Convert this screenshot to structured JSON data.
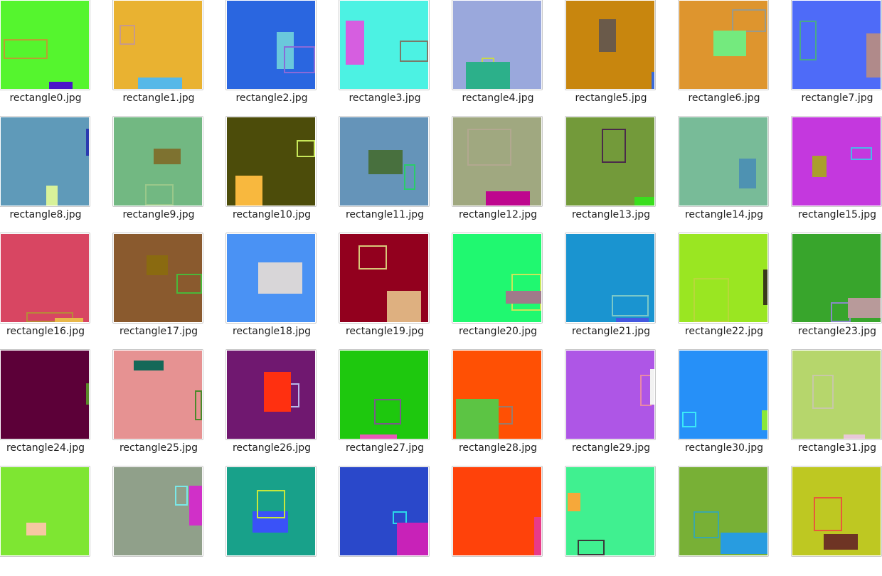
{
  "files": [
    {
      "name": "rectangle0.jpg",
      "bg": "#55f52e",
      "shapes": [
        {
          "k": "o",
          "c": "#b9a032"
        },
        {
          "k": "f",
          "c": "#4a16c8"
        }
      ]
    },
    {
      "name": "rectangle1.jpg",
      "bg": "#e9b231",
      "shapes": [
        {
          "k": "o",
          "c": "#c79a8a"
        },
        {
          "k": "f",
          "c": "#56b8e8"
        }
      ]
    },
    {
      "name": "rectangle2.jpg",
      "bg": "#2a66e0",
      "shapes": [
        {
          "k": "f",
          "c": "#6ac8dc"
        },
        {
          "k": "o",
          "c": "#8a6ad8"
        }
      ]
    },
    {
      "name": "rectangle3.jpg",
      "bg": "#4cf2e3",
      "shapes": [
        {
          "k": "f",
          "c": "#d65ee0"
        },
        {
          "k": "o",
          "c": "#7a7a6a"
        }
      ]
    },
    {
      "name": "rectangle4.jpg",
      "bg": "#9aa8dc",
      "shapes": [
        {
          "k": "o",
          "c": "#c8d84a"
        },
        {
          "k": "f",
          "c": "#2cb08a"
        }
      ]
    },
    {
      "name": "rectangle5.jpg",
      "bg": "#c8860e",
      "shapes": [
        {
          "k": "f",
          "c": "#6a5a4a"
        },
        {
          "k": "f",
          "c": "#3a6ad8"
        }
      ]
    },
    {
      "name": "rectangle6.jpg",
      "bg": "#de952e",
      "shapes": [
        {
          "k": "o",
          "c": "#9a9a8a"
        },
        {
          "k": "f",
          "c": "#74ea7e"
        }
      ]
    },
    {
      "name": "rectangle7.jpg",
      "bg": "#4e6bf8",
      "shapes": [
        {
          "k": "o",
          "c": "#4aa88a"
        },
        {
          "k": "f",
          "c": "#b08a8a"
        }
      ]
    },
    {
      "name": "rectangle8.jpg",
      "bg": "#5f9ab9",
      "shapes": [
        {
          "k": "o",
          "c": "#2a3ab0"
        },
        {
          "k": "f",
          "c": "#d8f29a"
        }
      ]
    },
    {
      "name": "rectangle9.jpg",
      "bg": "#72b882",
      "shapes": [
        {
          "k": "f",
          "c": "#7e7230"
        },
        {
          "k": "o",
          "c": "#9ac88a"
        }
      ]
    },
    {
      "name": "rectangle10.jpg",
      "bg": "#4c4c0a",
      "shapes": [
        {
          "k": "o",
          "c": "#c8e85a"
        },
        {
          "k": "f",
          "c": "#f8b83e"
        }
      ]
    },
    {
      "name": "rectangle11.jpg",
      "bg": "#6594b9",
      "shapes": [
        {
          "k": "f",
          "c": "#48703e"
        },
        {
          "k": "o",
          "c": "#2acb6a"
        }
      ]
    },
    {
      "name": "rectangle12.jpg",
      "bg": "#a0a880",
      "shapes": [
        {
          "k": "o",
          "c": "#b2a890"
        },
        {
          "k": "f",
          "c": "#be068e"
        }
      ]
    },
    {
      "name": "rectangle13.jpg",
      "bg": "#739a3a",
      "shapes": [
        {
          "k": "o",
          "c": "#4a2a4a"
        },
        {
          "k": "f",
          "c": "#3ade1e"
        }
      ]
    },
    {
      "name": "rectangle14.jpg",
      "bg": "#78bb98",
      "shapes": [
        {
          "k": "f",
          "c": "#4e92b2"
        }
      ]
    },
    {
      "name": "rectangle15.jpg",
      "bg": "#c438de",
      "shapes": [
        {
          "k": "f",
          "c": "#aa9e2c"
        },
        {
          "k": "o",
          "c": "#4ab8e8"
        }
      ]
    },
    {
      "name": "rectangle16.jpg",
      "bg": "#d84662",
      "shapes": [
        {
          "k": "o",
          "c": "#b8883a"
        },
        {
          "k": "f",
          "c": "#e8b84a"
        }
      ]
    },
    {
      "name": "rectangle17.jpg",
      "bg": "#8a5a2e",
      "shapes": [
        {
          "k": "f",
          "c": "#8a6a10"
        },
        {
          "k": "o",
          "c": "#4ab83a"
        }
      ]
    },
    {
      "name": "rectangle18.jpg",
      "bg": "#4a92f4",
      "shapes": [
        {
          "k": "f",
          "c": "#d8d6d8"
        }
      ]
    },
    {
      "name": "rectangle19.jpg",
      "bg": "#92001e",
      "shapes": [
        {
          "k": "o",
          "c": "#d8c87a"
        },
        {
          "k": "f",
          "c": "#deb080"
        }
      ]
    },
    {
      "name": "rectangle20.jpg",
      "bg": "#20f870",
      "shapes": [
        {
          "k": "o",
          "c": "#c8e85a"
        },
        {
          "k": "f",
          "c": "#a07a8a"
        }
      ]
    },
    {
      "name": "rectangle21.jpg",
      "bg": "#1a94d0",
      "shapes": [
        {
          "k": "f",
          "c": "#4458e0"
        },
        {
          "k": "o",
          "c": "#7ac8c8"
        }
      ]
    },
    {
      "name": "rectangle22.jpg",
      "bg": "#9ae622",
      "shapes": [
        {
          "k": "o",
          "c": "#b8d83a"
        },
        {
          "k": "f",
          "c": "#3a3a1a"
        }
      ]
    },
    {
      "name": "rectangle23.jpg",
      "bg": "#38a52c",
      "shapes": [
        {
          "k": "o",
          "c": "#8a8ac8"
        },
        {
          "k": "f",
          "c": "#b89a9a"
        }
      ]
    },
    {
      "name": "rectangle24.jpg",
      "bg": "#5c0038",
      "shapes": [
        {
          "k": "o",
          "c": "#5a8a2a"
        }
      ]
    },
    {
      "name": "rectangle25.jpg",
      "bg": "#e69292",
      "shapes": [
        {
          "k": "f",
          "c": "#146858"
        },
        {
          "k": "o",
          "c": "#4a8a2a"
        }
      ]
    },
    {
      "name": "rectangle26.jpg",
      "bg": "#701870",
      "shapes": [
        {
          "k": "o",
          "c": "#b8b8e8"
        },
        {
          "k": "f",
          "c": "#ff3010"
        }
      ]
    },
    {
      "name": "rectangle27.jpg",
      "bg": "#1ec80e",
      "shapes": [
        {
          "k": "o",
          "c": "#7a5a8a"
        },
        {
          "k": "f",
          "c": "#e858b8"
        }
      ]
    },
    {
      "name": "rectangle28.jpg",
      "bg": "#ff5004",
      "shapes": [
        {
          "k": "o",
          "c": "#9a7a6a"
        },
        {
          "k": "f",
          "c": "#5cc444"
        }
      ]
    },
    {
      "name": "rectangle29.jpg",
      "bg": "#ae56e6",
      "shapes": [
        {
          "k": "o",
          "c": "#e888a8"
        },
        {
          "k": "f",
          "c": "#f2f2f2"
        }
      ]
    },
    {
      "name": "rectangle30.jpg",
      "bg": "#2690f8",
      "shapes": [
        {
          "k": "o",
          "c": "#3ae8f8"
        },
        {
          "k": "f",
          "c": "#8ae83a"
        }
      ]
    },
    {
      "name": "rectangle31.jpg",
      "bg": "#b6d66c",
      "shapes": [
        {
          "k": "o",
          "c": "#c8c8a8"
        },
        {
          "k": "f",
          "c": "#e8c8d8"
        }
      ]
    },
    {
      "name": "",
      "bg": "#7ee632",
      "shapes": [
        {
          "k": "f",
          "c": "#f6c8a2"
        }
      ]
    },
    {
      "name": "",
      "bg": "#90a08a",
      "shapes": [
        {
          "k": "o",
          "c": "#7ae8e8"
        },
        {
          "k": "f",
          "c": "#d030c8"
        }
      ]
    },
    {
      "name": "",
      "bg": "#18a18a",
      "shapes": [
        {
          "k": "f",
          "c": "#3a52f8"
        },
        {
          "k": "o",
          "c": "#c8e83a"
        }
      ]
    },
    {
      "name": "",
      "bg": "#2a48ca",
      "shapes": [
        {
          "k": "o",
          "c": "#2ad8e8"
        },
        {
          "k": "f",
          "c": "#c822b8"
        }
      ]
    },
    {
      "name": "",
      "bg": "#ff420a",
      "shapes": [
        {
          "k": "f",
          "c": "#e83a8a"
        }
      ]
    },
    {
      "name": "",
      "bg": "#40f090",
      "shapes": [
        {
          "k": "f",
          "c": "#f6a83a"
        },
        {
          "k": "o",
          "c": "#3a3a3a"
        }
      ]
    },
    {
      "name": "",
      "bg": "#78b036",
      "shapes": [
        {
          "k": "f",
          "c": "#289ce0"
        },
        {
          "k": "o",
          "c": "#3aa8a8"
        }
      ]
    },
    {
      "name": "",
      "bg": "#bec822",
      "shapes": [
        {
          "k": "o",
          "c": "#e85a3a"
        },
        {
          "k": "f",
          "c": "#6e3424"
        }
      ]
    }
  ]
}
